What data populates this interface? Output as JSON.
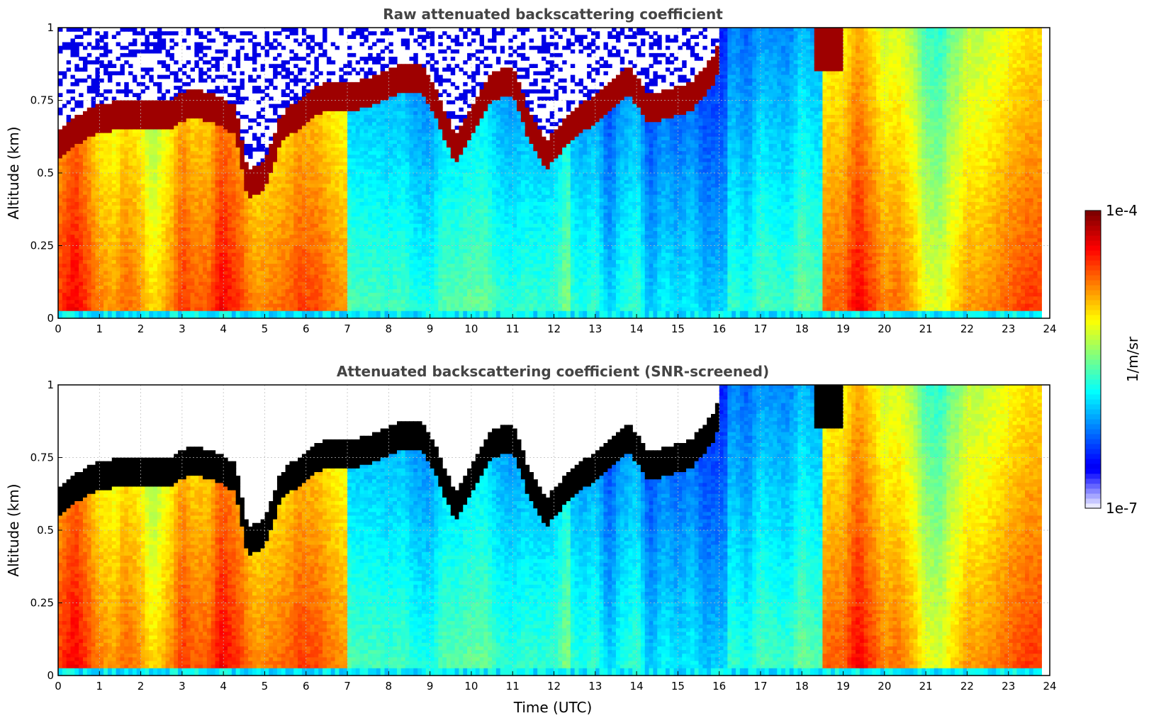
{
  "chart_data": [
    {
      "type": "heatmap",
      "title": "Raw attenuated backscattering coefficient",
      "xlabel": "",
      "ylabel": "Altitude (km)",
      "xlim": [
        0,
        24
      ],
      "ylim": [
        0,
        1
      ],
      "xticks": [
        "0",
        "1",
        "2",
        "3",
        "4",
        "5",
        "6",
        "7",
        "8",
        "9",
        "10",
        "11",
        "12",
        "13",
        "14",
        "15",
        "16",
        "17",
        "18",
        "19",
        "20",
        "21",
        "22",
        "23",
        "24"
      ],
      "yticks": [
        "0",
        "0.25",
        "0.5",
        "0.75",
        "1"
      ],
      "grid": true,
      "data_end_hour": 23.8,
      "colormap": "jet",
      "cloud_layer_km": [
        {
          "x": 0.0,
          "y": 0.6
        },
        {
          "x": 0.5,
          "y": 0.65
        },
        {
          "x": 0.9,
          "y": 0.68
        },
        {
          "x": 1.5,
          "y": 0.7
        },
        {
          "x": 2.0,
          "y": 0.7
        },
        {
          "x": 2.7,
          "y": 0.7
        },
        {
          "x": 3.2,
          "y": 0.74
        },
        {
          "x": 3.8,
          "y": 0.72
        },
        {
          "x": 4.3,
          "y": 0.68
        },
        {
          "x": 4.6,
          "y": 0.45
        },
        {
          "x": 5.0,
          "y": 0.5
        },
        {
          "x": 5.4,
          "y": 0.65
        },
        {
          "x": 5.8,
          "y": 0.7
        },
        {
          "x": 6.4,
          "y": 0.76
        },
        {
          "x": 7.0,
          "y": 0.76
        },
        {
          "x": 7.6,
          "y": 0.78
        },
        {
          "x": 8.2,
          "y": 0.82
        },
        {
          "x": 8.8,
          "y": 0.82
        },
        {
          "x": 9.2,
          "y": 0.72
        },
        {
          "x": 9.6,
          "y": 0.58
        },
        {
          "x": 10.0,
          "y": 0.68
        },
        {
          "x": 10.5,
          "y": 0.8
        },
        {
          "x": 11.0,
          "y": 0.82
        },
        {
          "x": 11.4,
          "y": 0.66
        },
        {
          "x": 11.8,
          "y": 0.56
        },
        {
          "x": 12.3,
          "y": 0.64
        },
        {
          "x": 12.8,
          "y": 0.7
        },
        {
          "x": 13.3,
          "y": 0.76
        },
        {
          "x": 13.8,
          "y": 0.82
        },
        {
          "x": 14.3,
          "y": 0.72
        },
        {
          "x": 14.8,
          "y": 0.74
        },
        {
          "x": 15.3,
          "y": 0.76
        },
        {
          "x": 15.8,
          "y": 0.84
        },
        {
          "x": 16.0,
          "y": 0.9
        }
      ],
      "secondary_cloud_km": [
        {
          "x": 18.3,
          "y": 0.88
        },
        {
          "x": 18.6,
          "y": 0.92
        },
        {
          "x": 18.9,
          "y": 0.97
        }
      ],
      "aerosol_hotspots_hour": [
        0.5,
        3.8,
        5.8,
        19.4,
        23.6
      ]
    },
    {
      "type": "heatmap",
      "title": "Attenuated backscattering coefficient (SNR-screened)",
      "xlabel": "Time (UTC)",
      "ylabel": "Altitude (km)",
      "xlim": [
        0,
        24
      ],
      "ylim": [
        0,
        1
      ],
      "xticks": [
        "0",
        "1",
        "2",
        "3",
        "4",
        "5",
        "6",
        "7",
        "8",
        "9",
        "10",
        "11",
        "12",
        "13",
        "14",
        "15",
        "16",
        "17",
        "18",
        "19",
        "20",
        "21",
        "22",
        "23",
        "24"
      ],
      "yticks": [
        "0",
        "0.25",
        "0.5",
        "0.75",
        "1"
      ],
      "grid": true,
      "data_end_hour": 23.8,
      "colormap": "jet",
      "screened": true
    }
  ],
  "colorbar": {
    "label": "1/m/sr",
    "max_label": "1e-4",
    "min_label": "1e-7",
    "colors": [
      "#e8e8ff",
      "#c8c8ff",
      "#9090ff",
      "#0000ff",
      "#0080ff",
      "#00ffff",
      "#80ff80",
      "#ffff00",
      "#ff8000",
      "#ff0000",
      "#800000"
    ]
  }
}
